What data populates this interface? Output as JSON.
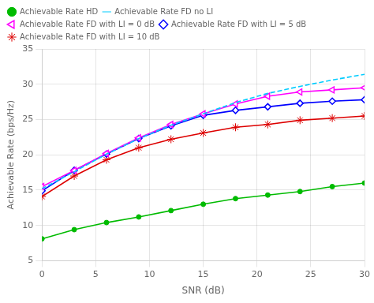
{
  "chart_data": {
    "type": "line",
    "xlabel": "SNR (dB)",
    "ylabel": "Achievable Rate (bps/Hz)",
    "x": [
      0,
      3,
      6,
      9,
      12,
      15,
      18,
      21,
      24,
      27,
      30
    ],
    "series": [
      {
        "name": "Achievable Rate HD",
        "color": "#00bb00",
        "marker": "circle",
        "line_style": "solid",
        "values": [
          8.1,
          9.4,
          10.4,
          11.2,
          12.1,
          13.0,
          13.8,
          14.3,
          14.8,
          15.5,
          16.0
        ]
      },
      {
        "name": "Achievable Rate FD no LI",
        "color": "#00ccff",
        "marker": "none",
        "line_style": "dashed",
        "values": [
          15.2,
          17.6,
          20.1,
          22.3,
          24.2,
          25.8,
          27.4,
          28.7,
          29.7,
          30.6,
          31.4
        ]
      },
      {
        "name": "Achievable Rate FD with LI = 0 dB",
        "color": "#ff00ff",
        "marker": "triangle-left",
        "line_style": "solid",
        "values": [
          15.5,
          17.8,
          20.2,
          22.4,
          24.3,
          25.8,
          27.2,
          28.3,
          28.9,
          29.2,
          29.5
        ]
      },
      {
        "name": "Achievable Rate FD with LI = 5 dB",
        "color": "#0000ff",
        "marker": "diamond",
        "line_style": "solid",
        "values": [
          14.9,
          17.8,
          20.1,
          22.3,
          24.1,
          25.6,
          26.3,
          26.8,
          27.3,
          27.6,
          27.8
        ]
      },
      {
        "name": "Achievable Rate FD with LI = 10 dB",
        "color": "#dd0000",
        "marker": "star",
        "line_style": "solid",
        "values": [
          14.1,
          17.0,
          19.3,
          21.0,
          22.2,
          23.1,
          23.9,
          24.3,
          24.9,
          25.2,
          25.5
        ]
      }
    ],
    "xlim": [
      0,
      30
    ],
    "ylim": [
      5,
      35
    ],
    "xticks": [
      0,
      5,
      10,
      15,
      20,
      25,
      30
    ],
    "yticks": [
      5,
      10,
      15,
      20,
      25,
      30,
      35
    ],
    "grid": true,
    "legend": "upper left"
  }
}
